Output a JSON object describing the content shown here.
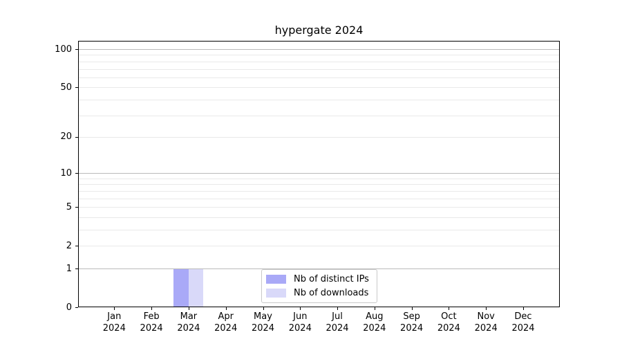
{
  "colors": {
    "major_grid": "#bababa",
    "minor_grid": "#e9e9e9",
    "axis": "#000000",
    "legend_border": "#c9c9c9",
    "background": "#ffffff"
  },
  "chart_data": {
    "type": "bar",
    "title": "hypergate 2024",
    "xlabel": "",
    "ylabel": "",
    "yscale": "log1p",
    "ylim": [
      0,
      100
    ],
    "yticks": [
      0,
      1,
      2,
      5,
      10,
      20,
      50,
      100
    ],
    "grid_values": [
      1,
      2,
      3,
      4,
      5,
      6,
      7,
      8,
      9,
      10,
      20,
      30,
      40,
      50,
      60,
      70,
      80,
      90,
      100
    ],
    "emphasized_grid_values": [
      1,
      10,
      100
    ],
    "grid": "horizontal",
    "legend_position": "lower center",
    "categories": [
      {
        "month": "Jan",
        "year": "2024"
      },
      {
        "month": "Feb",
        "year": "2024"
      },
      {
        "month": "Mar",
        "year": "2024"
      },
      {
        "month": "Apr",
        "year": "2024"
      },
      {
        "month": "May",
        "year": "2024"
      },
      {
        "month": "Jun",
        "year": "2024"
      },
      {
        "month": "Jul",
        "year": "2024"
      },
      {
        "month": "Aug",
        "year": "2024"
      },
      {
        "month": "Sep",
        "year": "2024"
      },
      {
        "month": "Oct",
        "year": "2024"
      },
      {
        "month": "Nov",
        "year": "2024"
      },
      {
        "month": "Dec",
        "year": "2024"
      }
    ],
    "series": [
      {
        "name": "Nb of distinct IPs",
        "color": "#a9a9f7",
        "values": [
          0,
          0,
          1,
          0,
          0,
          0,
          0,
          0,
          0,
          0,
          0,
          0
        ]
      },
      {
        "name": "Nb of downloads",
        "color": "#d9d9f9",
        "values": [
          0,
          0,
          1,
          0,
          0,
          0,
          0,
          0,
          0,
          0,
          0,
          0
        ]
      }
    ]
  }
}
